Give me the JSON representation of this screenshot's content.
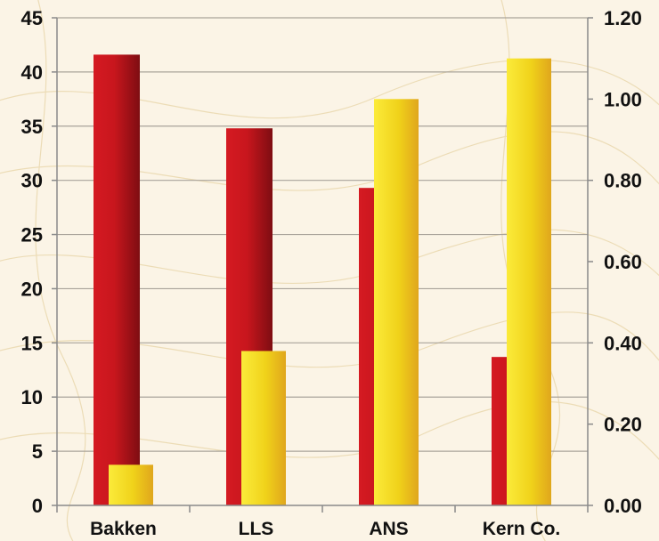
{
  "chart_data": {
    "type": "bar",
    "categories": [
      "Bakken",
      "LLS",
      "ANS",
      "Kern Co."
    ],
    "series": [
      {
        "axis": "left",
        "color": "#c4141b",
        "values": [
          41.6,
          34.8,
          29.3,
          13.7
        ]
      },
      {
        "axis": "right",
        "color": "#f1d418",
        "values": [
          0.1,
          0.38,
          1.0,
          1.1
        ]
      }
    ],
    "y_left": {
      "ylim": [
        0,
        45
      ],
      "ticks": [
        "0",
        "5",
        "10",
        "15",
        "20",
        "25",
        "30",
        "35",
        "40",
        "45"
      ],
      "tick_values": [
        0,
        5,
        10,
        15,
        20,
        25,
        30,
        35,
        40,
        45
      ]
    },
    "y_right": {
      "ylim": [
        0,
        1.2
      ],
      "ticks": [
        "0.00",
        "0.20",
        "0.40",
        "0.60",
        "0.80",
        "1.00",
        "1.20"
      ],
      "tick_values": [
        0,
        0.2,
        0.4,
        0.6,
        0.8,
        1.0,
        1.2
      ]
    },
    "grid": true,
    "title": "",
    "xlabel": "",
    "ylabel": ""
  }
}
